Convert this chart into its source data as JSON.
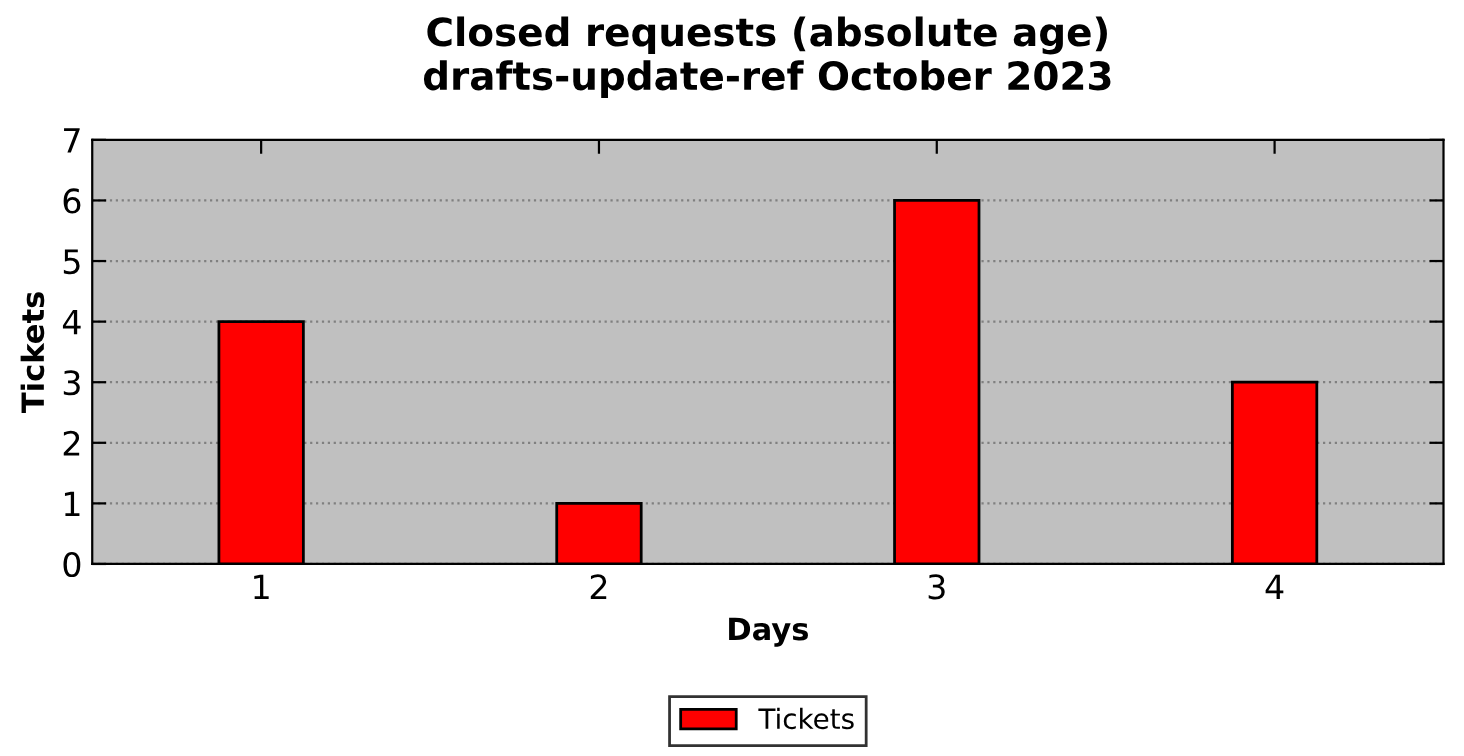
{
  "chart_data": {
    "type": "bar",
    "title": "Closed requests (absolute age)\ndrafts-update-ref October 2023",
    "xlabel": "Days",
    "ylabel": "Tickets",
    "x": [
      1,
      2,
      3,
      4
    ],
    "series": [
      {
        "name": "Tickets",
        "color": "#ff0000",
        "values": [
          4,
          1,
          6,
          3
        ]
      }
    ],
    "xlim": [
      0.5,
      4.5
    ],
    "xticks": [
      1,
      2,
      3,
      4
    ],
    "ylim": [
      0,
      7
    ],
    "yticks": [
      0,
      1,
      2,
      3,
      4,
      5,
      6,
      7
    ],
    "grid": "y",
    "legend": "bottom"
  }
}
